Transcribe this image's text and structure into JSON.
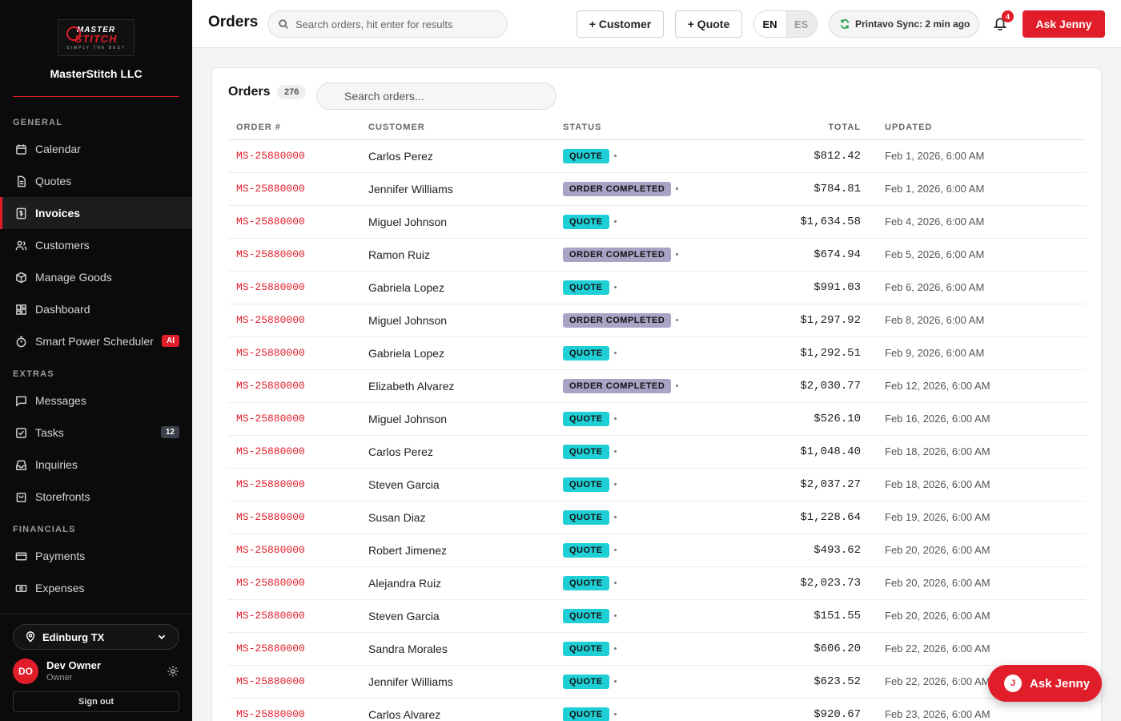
{
  "sidebar": {
    "logo": {
      "line1": "MASTER",
      "line2": "STITCH",
      "tagline": "SIMPLY THE BEST"
    },
    "org_name": "MasterStitch LLC",
    "sections": {
      "general": "GENERAL",
      "extras": "EXTRAS",
      "financials": "FINANCIALS"
    },
    "items": [
      {
        "label": "Calendar",
        "icon": "calendar-icon"
      },
      {
        "label": "Quotes",
        "icon": "document-icon"
      },
      {
        "label": "Invoices",
        "icon": "invoice-icon",
        "active": true
      },
      {
        "label": "Customers",
        "icon": "users-icon"
      },
      {
        "label": "Manage Goods",
        "icon": "box-icon"
      },
      {
        "label": "Dashboard",
        "icon": "dashboard-icon"
      },
      {
        "label": "Smart Power Scheduler",
        "icon": "timer-icon",
        "badge": "AI"
      },
      {
        "label": "Messages",
        "icon": "message-icon"
      },
      {
        "label": "Tasks",
        "icon": "checkbox-icon",
        "badge": "12"
      },
      {
        "label": "Inquiries",
        "icon": "inbox-icon"
      },
      {
        "label": "Storefronts",
        "icon": "store-icon"
      },
      {
        "label": "Payments",
        "icon": "card-icon"
      },
      {
        "label": "Expenses",
        "icon": "cash-icon"
      }
    ],
    "location": "Edinburg TX",
    "user": {
      "initials": "DO",
      "name": "Dev Owner",
      "role": "Owner"
    },
    "sign_out": "Sign out"
  },
  "header": {
    "title": "Orders",
    "search_placeholder": "Search orders, hit enter for results",
    "add_customer": "+ Customer",
    "add_quote": "+ Quote",
    "lang_en": "EN",
    "lang_es": "ES",
    "sync": "Printavo Sync: 2 min ago",
    "notifications": "4",
    "ask": "Ask Jenny"
  },
  "orders": {
    "title": "Orders",
    "count": "276",
    "search_placeholder": "Search orders...",
    "columns": [
      "ORDER #",
      "CUSTOMER",
      "STATUS",
      "TOTAL",
      "UPDATED"
    ],
    "rows": [
      {
        "order": "MS-25880000",
        "customer": "Carlos Perez",
        "status": "QUOTE",
        "total": "$812.42",
        "updated": "Feb 1, 2026, 6:00 AM"
      },
      {
        "order": "MS-25880000",
        "customer": "Jennifer Williams",
        "status": "ORDER COMPLETED",
        "total": "$784.81",
        "updated": "Feb 1, 2026, 6:00 AM"
      },
      {
        "order": "MS-25880000",
        "customer": "Miguel Johnson",
        "status": "QUOTE",
        "total": "$1,634.58",
        "updated": "Feb 4, 2026, 6:00 AM"
      },
      {
        "order": "MS-25880000",
        "customer": "Ramon Ruiz",
        "status": "ORDER COMPLETED",
        "total": "$674.94",
        "updated": "Feb 5, 2026, 6:00 AM"
      },
      {
        "order": "MS-25880000",
        "customer": "Gabriela Lopez",
        "status": "QUOTE",
        "total": "$991.03",
        "updated": "Feb 6, 2026, 6:00 AM"
      },
      {
        "order": "MS-25880000",
        "customer": "Miguel Johnson",
        "status": "ORDER COMPLETED",
        "total": "$1,297.92",
        "updated": "Feb 8, 2026, 6:00 AM"
      },
      {
        "order": "MS-25880000",
        "customer": "Gabriela Lopez",
        "status": "QUOTE",
        "total": "$1,292.51",
        "updated": "Feb 9, 2026, 6:00 AM"
      },
      {
        "order": "MS-25880000",
        "customer": "Elizabeth Alvarez",
        "status": "ORDER COMPLETED",
        "total": "$2,030.77",
        "updated": "Feb 12, 2026, 6:00 AM"
      },
      {
        "order": "MS-25880000",
        "customer": "Miguel Johnson",
        "status": "QUOTE",
        "total": "$526.10",
        "updated": "Feb 16, 2026, 6:00 AM"
      },
      {
        "order": "MS-25880000",
        "customer": "Carlos Perez",
        "status": "QUOTE",
        "total": "$1,048.40",
        "updated": "Feb 18, 2026, 6:00 AM"
      },
      {
        "order": "MS-25880000",
        "customer": "Steven Garcia",
        "status": "QUOTE",
        "total": "$2,037.27",
        "updated": "Feb 18, 2026, 6:00 AM"
      },
      {
        "order": "MS-25880000",
        "customer": "Susan Diaz",
        "status": "QUOTE",
        "total": "$1,228.64",
        "updated": "Feb 19, 2026, 6:00 AM"
      },
      {
        "order": "MS-25880000",
        "customer": "Robert Jimenez",
        "status": "QUOTE",
        "total": "$493.62",
        "updated": "Feb 20, 2026, 6:00 AM"
      },
      {
        "order": "MS-25880000",
        "customer": "Alejandra Ruiz",
        "status": "QUOTE",
        "total": "$2,023.73",
        "updated": "Feb 20, 2026, 6:00 AM"
      },
      {
        "order": "MS-25880000",
        "customer": "Steven Garcia",
        "status": "QUOTE",
        "total": "$151.55",
        "updated": "Feb 20, 2026, 6:00 AM"
      },
      {
        "order": "MS-25880000",
        "customer": "Sandra Morales",
        "status": "QUOTE",
        "total": "$606.20",
        "updated": "Feb 22, 2026, 6:00 AM"
      },
      {
        "order": "MS-25880000",
        "customer": "Jennifer Williams",
        "status": "QUOTE",
        "total": "$623.52",
        "updated": "Feb 22, 2026, 6:00 AM"
      },
      {
        "order": "MS-25880000",
        "customer": "Carlos Alvarez",
        "status": "QUOTE",
        "total": "$920.67",
        "updated": "Feb 23, 2026, 6:00 AM"
      }
    ]
  },
  "fab": {
    "label": "Ask Jenny",
    "initial": "J"
  },
  "colors": {
    "accent": "#e11d2a",
    "quote": "#1fcfd6",
    "completed": "#a9a3c6",
    "sidebar": "#0b0b0b"
  }
}
